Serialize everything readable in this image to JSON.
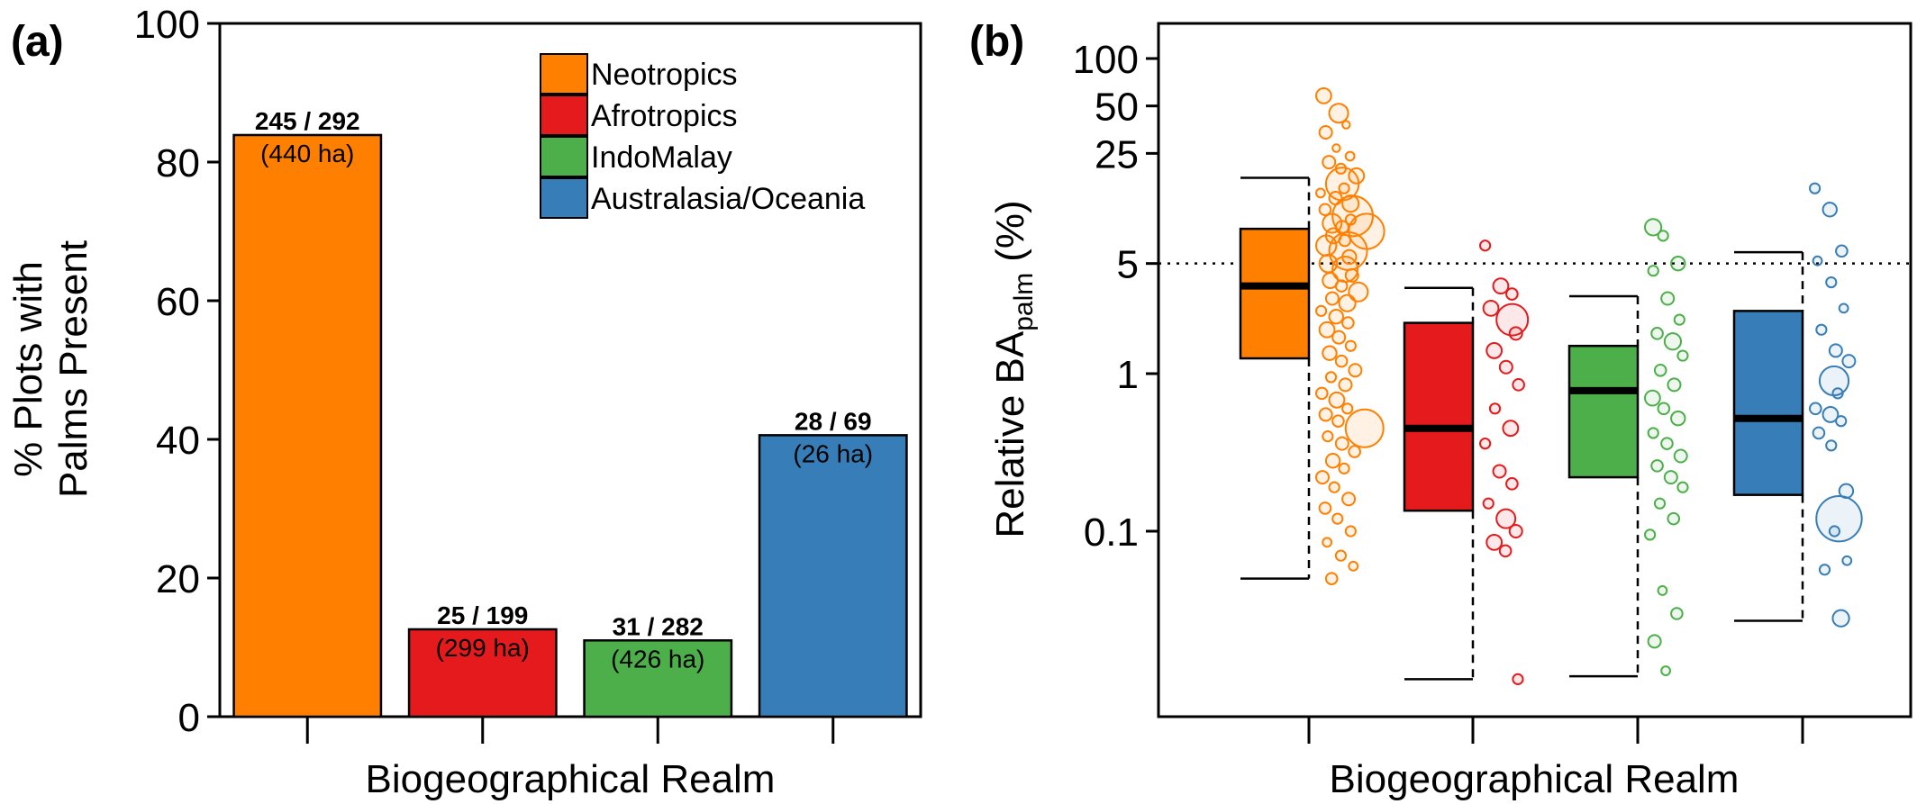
{
  "chart_data": [
    {
      "panel": "(a)",
      "type": "bar",
      "xlabel": "Biogeographical Realm",
      "ylabel_line1": "% Plots with",
      "ylabel_line2": "Palms Present",
      "ylim": [
        0,
        100
      ],
      "yticks": [
        "0",
        "20",
        "40",
        "60",
        "80",
        "100"
      ],
      "categories": [
        "Neotropics",
        "Afrotropics",
        "IndoMalay",
        "Australasia/Oceania"
      ],
      "values": [
        83.9,
        12.6,
        11.0,
        40.6
      ],
      "colors": [
        "#ff7f00",
        "#e41a1c",
        "#4daf4a",
        "#377eb8"
      ],
      "counts": [
        "245 / 292",
        "25 / 199",
        "31 / 282",
        "28 / 69"
      ],
      "areas": [
        "(440 ha)",
        "(299 ha)",
        "(426 ha)",
        "(26 ha)"
      ],
      "legend": [
        "Neotropics",
        "Afrotropics",
        "IndoMalay",
        "Australasia/Oceania"
      ],
      "legend_position": "top-right"
    },
    {
      "panel": "(b)",
      "type": "box",
      "xlabel": "Biogeographical Realm",
      "ylabel_main": "Relative BA",
      "ylabel_sub": "palm",
      "ylabel_unit": "(%)",
      "yscale": "log",
      "yticks": [
        "0.1",
        "1",
        "5",
        "25",
        "50",
        "100"
      ],
      "ytick_values": [
        0.1,
        1,
        5,
        25,
        50,
        100
      ],
      "reference_line": 5,
      "categories": [
        "Neotropics",
        "Afrotropics",
        "IndoMalay",
        "Australasia/Oceania"
      ],
      "colors": [
        "#ff7f00",
        "#e41a1c",
        "#4daf4a",
        "#377eb8"
      ],
      "boxes": [
        {
          "whisker_low": 0.05,
          "q1": 1.25,
          "median": 3.6,
          "q3": 8.3,
          "whisker_high": 17.5
        },
        {
          "whisker_low": 0.0115,
          "q1": 0.135,
          "median": 0.45,
          "q3": 2.1,
          "whisker_high": 3.5
        },
        {
          "whisker_low": 0.012,
          "q1": 0.22,
          "median": 0.78,
          "q3": 1.5,
          "whisker_high": 3.1
        },
        {
          "whisker_low": 0.027,
          "q1": 0.17,
          "median": 0.52,
          "q3": 2.5,
          "whisker_high": 5.9
        }
      ],
      "points": [
        [
          [
            58,
            1.2
          ],
          [
            45,
            1.5
          ],
          [
            38,
            0.6
          ],
          [
            34,
            1.0
          ],
          [
            27,
            0.6
          ],
          [
            24,
            0.7
          ],
          [
            22,
            1.0
          ],
          [
            20,
            0.8
          ],
          [
            18,
            1.2
          ],
          [
            16,
            2.6
          ],
          [
            15,
            0.8
          ],
          [
            14,
            0.7
          ],
          [
            13,
            1.0
          ],
          [
            12,
            1.3
          ],
          [
            11,
            0.9
          ],
          [
            10,
            3.2
          ],
          [
            9.5,
            0.8
          ],
          [
            9,
            1.5
          ],
          [
            8.5,
            1.0
          ],
          [
            8,
            2.8
          ],
          [
            7.5,
            1.2
          ],
          [
            7,
            0.9
          ],
          [
            6.5,
            1.6
          ],
          [
            6,
            3.0
          ],
          [
            5.5,
            1.1
          ],
          [
            5,
            1.4
          ],
          [
            4.6,
            2.0
          ],
          [
            4.2,
            1.0
          ],
          [
            3.9,
            1.2
          ],
          [
            3.6,
            0.9
          ],
          [
            3.3,
            1.5
          ],
          [
            3.0,
            1.0
          ],
          [
            2.8,
            1.3
          ],
          [
            2.5,
            0.8
          ],
          [
            2.3,
            1.1
          ],
          [
            2.1,
            0.9
          ],
          [
            1.9,
            1.2
          ],
          [
            1.7,
            1.0
          ],
          [
            1.5,
            0.8
          ],
          [
            1.35,
            1.1
          ],
          [
            1.2,
            0.9
          ],
          [
            1.05,
            1.0
          ],
          [
            0.95,
            0.8
          ],
          [
            0.85,
            1.0
          ],
          [
            0.75,
            0.9
          ],
          [
            0.68,
            1.2
          ],
          [
            0.6,
            0.8
          ],
          [
            0.55,
            1.0
          ],
          [
            0.5,
            0.9
          ],
          [
            0.45,
            3.0
          ],
          [
            0.4,
            0.8
          ],
          [
            0.36,
            1.0
          ],
          [
            0.32,
            0.9
          ],
          [
            0.28,
            1.1
          ],
          [
            0.25,
            0.8
          ],
          [
            0.22,
            1.0
          ],
          [
            0.19,
            0.8
          ],
          [
            0.16,
            1.0
          ],
          [
            0.14,
            0.9
          ],
          [
            0.12,
            0.8
          ],
          [
            0.1,
            0.8
          ],
          [
            0.085,
            0.7
          ],
          [
            0.07,
            0.8
          ],
          [
            0.06,
            0.7
          ],
          [
            0.05,
            0.9
          ]
        ],
        [
          [
            6.5,
            0.8
          ],
          [
            3.6,
            1.2
          ],
          [
            3.2,
            0.9
          ],
          [
            2.6,
            1.2
          ],
          [
            2.2,
            2.5
          ],
          [
            1.8,
            1.0
          ],
          [
            1.4,
            1.2
          ],
          [
            1.1,
            1.0
          ],
          [
            0.85,
            0.9
          ],
          [
            0.6,
            0.8
          ],
          [
            0.45,
            1.2
          ],
          [
            0.36,
            0.8
          ],
          [
            0.24,
            1.0
          ],
          [
            0.2,
            0.9
          ],
          [
            0.15,
            0.8
          ],
          [
            0.12,
            1.5
          ],
          [
            0.1,
            1.0
          ],
          [
            0.085,
            1.2
          ],
          [
            0.075,
            0.9
          ],
          [
            0.0115,
            0.8
          ]
        ],
        [
          [
            8.5,
            1.3
          ],
          [
            7.5,
            0.8
          ],
          [
            5.0,
            1.1
          ],
          [
            4.5,
            0.8
          ],
          [
            3.0,
            1.0
          ],
          [
            2.2,
            0.8
          ],
          [
            1.8,
            0.9
          ],
          [
            1.6,
            1.3
          ],
          [
            1.3,
            0.8
          ],
          [
            1.05,
            0.9
          ],
          [
            0.85,
            1.0
          ],
          [
            0.7,
            1.2
          ],
          [
            0.6,
            0.9
          ],
          [
            0.52,
            1.1
          ],
          [
            0.42,
            0.8
          ],
          [
            0.36,
            0.9
          ],
          [
            0.3,
            1.0
          ],
          [
            0.26,
            0.9
          ],
          [
            0.22,
            1.0
          ],
          [
            0.19,
            0.8
          ],
          [
            0.15,
            0.8
          ],
          [
            0.12,
            0.9
          ],
          [
            0.095,
            0.8
          ],
          [
            0.042,
            0.7
          ],
          [
            0.03,
            0.9
          ],
          [
            0.02,
            1.0
          ],
          [
            0.013,
            0.7
          ]
        ],
        [
          [
            15,
            0.8
          ],
          [
            11,
            1.1
          ],
          [
            6.0,
            0.9
          ],
          [
            5.2,
            0.7
          ],
          [
            3.8,
            0.8
          ],
          [
            2.6,
            0.7
          ],
          [
            1.9,
            0.8
          ],
          [
            1.4,
            1.0
          ],
          [
            1.2,
            1.0
          ],
          [
            0.9,
            2.3
          ],
          [
            0.75,
            0.8
          ],
          [
            0.6,
            0.9
          ],
          [
            0.55,
            1.2
          ],
          [
            0.5,
            0.8
          ],
          [
            0.42,
            0.9
          ],
          [
            0.35,
            0.8
          ],
          [
            0.18,
            1.1
          ],
          [
            0.12,
            3.6
          ],
          [
            0.1,
            0.8
          ],
          [
            0.065,
            0.7
          ],
          [
            0.057,
            0.8
          ],
          [
            0.028,
            1.3
          ]
        ]
      ]
    }
  ]
}
